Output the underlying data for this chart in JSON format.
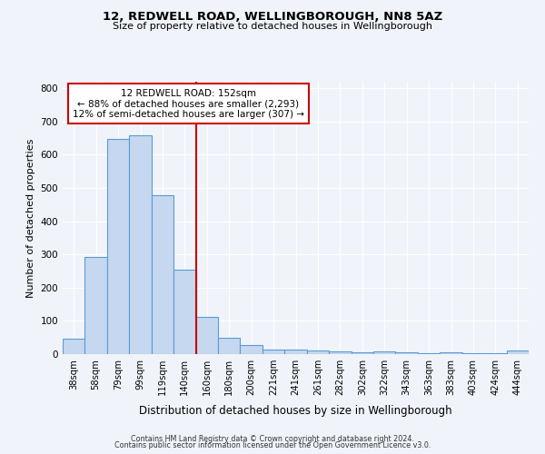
{
  "title1": "12, REDWELL ROAD, WELLINGBOROUGH, NN8 5AZ",
  "title2": "Size of property relative to detached houses in Wellingborough",
  "xlabel": "Distribution of detached houses by size in Wellingborough",
  "ylabel": "Number of detached properties",
  "annotation_line1": "12 REDWELL ROAD: 152sqm",
  "annotation_line2": "← 88% of detached houses are smaller (2,293)",
  "annotation_line3": "12% of semi-detached houses are larger (307) →",
  "categories": [
    "38sqm",
    "58sqm",
    "79sqm",
    "99sqm",
    "119sqm",
    "140sqm",
    "160sqm",
    "180sqm",
    "200sqm",
    "221sqm",
    "241sqm",
    "261sqm",
    "282sqm",
    "302sqm",
    "322sqm",
    "343sqm",
    "363sqm",
    "383sqm",
    "403sqm",
    "424sqm",
    "444sqm"
  ],
  "values": [
    47,
    293,
    648,
    660,
    478,
    253,
    113,
    50,
    28,
    15,
    15,
    12,
    8,
    5,
    8,
    5,
    3,
    5,
    3,
    3,
    10
  ],
  "bar_color": "#c5d8ef",
  "bar_edge_color": "#5b9bd5",
  "red_line_color": "#cc0000",
  "background_color": "#f0f4fa",
  "plot_bg_color": "#f0f4fa",
  "grid_color": "#ffffff",
  "footer_line1": "Contains HM Land Registry data © Crown copyright and database right 2024.",
  "footer_line2": "Contains public sector information licensed under the Open Government Licence v3.0.",
  "ylim": [
    0,
    820
  ],
  "yticks": [
    0,
    100,
    200,
    300,
    400,
    500,
    600,
    700,
    800
  ],
  "annotation_box_facecolor": "#ffffff",
  "annotation_box_edgecolor": "#cc0000",
  "red_line_index": 6
}
